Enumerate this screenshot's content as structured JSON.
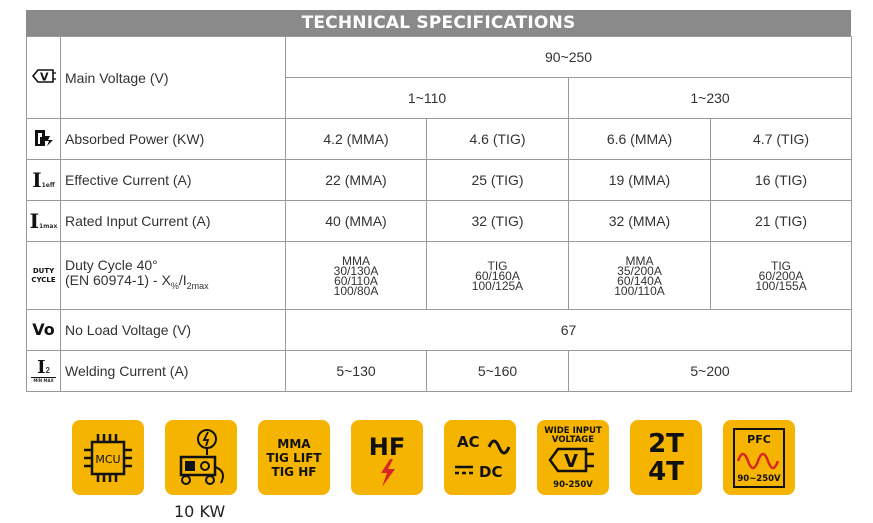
{
  "title": "TECHNICAL SPECIFICATIONS",
  "rows": {
    "main_voltage": {
      "icon": "voltage-icon",
      "label": "Main Voltage (V)",
      "top": "90~250",
      "sub_left": "1~110",
      "sub_right": "1~230"
    },
    "absorbed_power": {
      "icon": "power-icon",
      "label": "Absorbed Power (KW)",
      "values": [
        "4.2 (MMA)",
        "4.6 (TIG)",
        "6.6 (MMA)",
        "4.7 (TIG)"
      ]
    },
    "effective_current": {
      "icon": "i-eff-icon",
      "icon_text": "I",
      "icon_sub": "1eff",
      "label": "Effective Current (A)",
      "values": [
        "22 (MMA)",
        "25 (TIG)",
        "19 (MMA)",
        "16 (TIG)"
      ]
    },
    "rated_input_current": {
      "icon": "i-max-icon",
      "icon_text": "I",
      "icon_sub": "1max",
      "label": "Rated Input Current (A)",
      "values": [
        "40 (MMA)",
        "32 (TIG)",
        "32 (MMA)",
        "21 (TIG)"
      ]
    },
    "duty_cycle": {
      "icon": "duty-cycle-icon",
      "icon_line1": "DUTY",
      "icon_line2": "CYCLE",
      "label_line1": "Duty Cycle 40°",
      "label_line2": "(EN 60974-1) - X",
      "label_sub1": "%",
      "label_mid": "/I",
      "label_sub2": "2max",
      "cells": [
        [
          "MMA",
          "30/130A",
          "60/110A",
          "100/80A"
        ],
        [
          "TIG",
          "60/160A",
          "100/125A"
        ],
        [
          "MMA",
          "35/200A",
          "60/140A",
          "100/110A"
        ],
        [
          "TIG",
          "60/200A",
          "100/155A"
        ]
      ]
    },
    "no_load_voltage": {
      "icon": "vo-icon",
      "icon_text": "Vo",
      "label": "No Load Voltage (V)",
      "value": "67"
    },
    "welding_current": {
      "icon": "i2-icon",
      "icon_text": "I",
      "icon_sub": "2",
      "icon_small": "MIN MAX",
      "label": "Welding Current (A)",
      "values": [
        "5~130",
        "5~160",
        "5~200"
      ]
    }
  },
  "features": [
    {
      "name": "mcu-chip-icon",
      "text": "MCU"
    },
    {
      "name": "generator-icon",
      "text": ""
    },
    {
      "name": "mma-tig-badge",
      "lines": [
        "MMA",
        "TIG LIFT",
        "TIG HF"
      ]
    },
    {
      "name": "hf-icon",
      "text": "HF"
    },
    {
      "name": "ac-dc-icon",
      "lines": [
        "AC",
        "DC"
      ]
    },
    {
      "name": "wide-input-voltage-icon",
      "lines": [
        "WIDE INPUT",
        "VOLTAGE",
        "V",
        "90-250V"
      ]
    },
    {
      "name": "2t-4t-badge",
      "lines": [
        "2T",
        "4T"
      ]
    },
    {
      "name": "pfc-icon",
      "lines": [
        "PFC",
        "90~250V"
      ]
    }
  ],
  "generator_caption": "10 KW",
  "colors": {
    "badge": "#f4b400",
    "title_bar": "#8a8a8a",
    "border": "#9a9a9a",
    "hf_bolt": "#d62828"
  }
}
